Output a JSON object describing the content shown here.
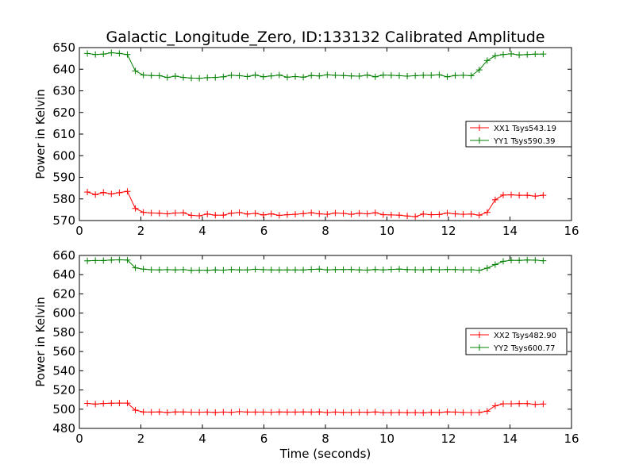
{
  "title": "Galactic_Longitude_Zero, ID:133132 Calibrated Amplitude",
  "colors": {
    "red": "#ff0000",
    "green": "#008000"
  },
  "chart_data": [
    {
      "type": "line",
      "ylabel": "Power in Kelvin",
      "xlabel": "",
      "xlim": [
        0,
        16
      ],
      "ylim": [
        570,
        650
      ],
      "xticks": [
        0,
        2,
        4,
        6,
        8,
        10,
        12,
        14,
        16
      ],
      "yticks": [
        570,
        580,
        590,
        600,
        610,
        620,
        630,
        640,
        650
      ],
      "legend_position": "center-right",
      "x": [
        0.26,
        0.52,
        0.78,
        1.04,
        1.3,
        1.56,
        1.82,
        2.08,
        2.34,
        2.6,
        2.86,
        3.12,
        3.38,
        3.64,
        3.9,
        4.16,
        4.42,
        4.68,
        4.94,
        5.2,
        5.46,
        5.72,
        5.98,
        6.24,
        6.5,
        6.76,
        7.02,
        7.28,
        7.54,
        7.8,
        8.06,
        8.32,
        8.58,
        8.84,
        9.1,
        9.36,
        9.62,
        9.88,
        10.14,
        10.4,
        10.66,
        10.92,
        11.18,
        11.44,
        11.7,
        11.96,
        12.22,
        12.48,
        12.74,
        13.0,
        13.26,
        13.52,
        13.78,
        14.04,
        14.3,
        14.56,
        14.82,
        15.08
      ],
      "series": [
        {
          "name": "XX1 Tsys543.19",
          "color": "red",
          "values": [
            583.2,
            582.0,
            583.0,
            582.3,
            582.9,
            583.5,
            575.6,
            573.8,
            573.5,
            573.4,
            573.1,
            573.5,
            573.6,
            572.4,
            572.2,
            573.0,
            572.5,
            572.5,
            573.4,
            573.7,
            573.0,
            573.3,
            572.6,
            573.1,
            572.4,
            572.7,
            572.9,
            573.2,
            573.6,
            573.1,
            572.9,
            573.5,
            573.3,
            572.9,
            573.4,
            573.1,
            573.6,
            572.7,
            572.6,
            572.5,
            572.1,
            571.8,
            573.0,
            572.7,
            572.8,
            573.5,
            573.1,
            572.9,
            573.0,
            572.5,
            573.8,
            579.6,
            581.8,
            581.9,
            581.7,
            581.7,
            581.3,
            581.7
          ]
        },
        {
          "name": "YY1 Tsys590.39",
          "color": "green",
          "values": [
            647.3,
            646.8,
            647.0,
            647.6,
            647.3,
            646.8,
            639.2,
            637.3,
            637.1,
            637.0,
            636.2,
            636.8,
            636.2,
            635.9,
            635.8,
            636.1,
            636.2,
            636.5,
            637.2,
            637.0,
            636.6,
            637.3,
            636.5,
            636.9,
            637.3,
            636.3,
            636.6,
            636.3,
            637.1,
            636.9,
            637.4,
            637.2,
            637.1,
            636.9,
            636.8,
            637.3,
            636.5,
            637.3,
            637.2,
            637.0,
            636.8,
            637.0,
            637.2,
            637.2,
            637.4,
            636.5,
            637.1,
            637.2,
            637.0,
            639.7,
            644.0,
            646.2,
            646.8,
            647.1,
            646.6,
            646.8,
            647.0,
            647.0
          ]
        }
      ]
    },
    {
      "type": "line",
      "ylabel": "Power in Kelvin",
      "xlabel": "Time (seconds)",
      "xlim": [
        0,
        16
      ],
      "ylim": [
        480,
        660
      ],
      "xticks": [
        0,
        2,
        4,
        6,
        8,
        10,
        12,
        14,
        16
      ],
      "yticks": [
        480,
        500,
        520,
        540,
        560,
        580,
        600,
        620,
        640,
        660
      ],
      "legend_position": "center-right",
      "x": [
        0.26,
        0.52,
        0.78,
        1.04,
        1.3,
        1.56,
        1.82,
        2.08,
        2.34,
        2.6,
        2.86,
        3.12,
        3.38,
        3.64,
        3.9,
        4.16,
        4.42,
        4.68,
        4.94,
        5.2,
        5.46,
        5.72,
        5.98,
        6.24,
        6.5,
        6.76,
        7.02,
        7.28,
        7.54,
        7.8,
        8.06,
        8.32,
        8.58,
        8.84,
        9.1,
        9.36,
        9.62,
        9.88,
        10.14,
        10.4,
        10.66,
        10.92,
        11.18,
        11.44,
        11.7,
        11.96,
        12.22,
        12.48,
        12.74,
        13.0,
        13.26,
        13.52,
        13.78,
        14.04,
        14.3,
        14.56,
        14.82,
        15.08
      ],
      "series": [
        {
          "name": "XX2 Tsys482.90",
          "color": "red",
          "values": [
            506.0,
            505.3,
            505.9,
            506.2,
            506.3,
            506.3,
            499.0,
            497.1,
            497.0,
            497.2,
            496.6,
            497.1,
            497.1,
            496.9,
            496.9,
            497.0,
            496.6,
            497.0,
            496.8,
            497.4,
            497.0,
            497.0,
            497.0,
            496.9,
            497.1,
            497.0,
            497.0,
            497.1,
            497.0,
            497.2,
            496.5,
            497.0,
            496.6,
            496.6,
            496.9,
            496.8,
            497.1,
            496.4,
            496.4,
            496.6,
            496.4,
            496.5,
            496.2,
            496.7,
            496.6,
            497.2,
            497.0,
            496.6,
            496.5,
            496.6,
            497.9,
            503.5,
            505.6,
            505.6,
            505.8,
            505.8,
            505.0,
            505.4
          ]
        },
        {
          "name": "YY2 Tsys600.77",
          "color": "green",
          "values": [
            654.4,
            654.7,
            654.7,
            655.2,
            655.5,
            655.2,
            647.1,
            645.8,
            645.1,
            645.0,
            645.2,
            645.0,
            645.2,
            644.5,
            644.7,
            644.6,
            645.0,
            644.7,
            645.3,
            645.0,
            645.0,
            645.6,
            645.2,
            645.0,
            644.9,
            645.0,
            645.0,
            644.9,
            645.5,
            645.8,
            645.0,
            645.3,
            645.3,
            645.4,
            645.0,
            644.8,
            645.4,
            645.0,
            645.5,
            645.8,
            645.3,
            645.1,
            645.0,
            645.4,
            645.1,
            645.4,
            645.3,
            645.0,
            645.1,
            644.6,
            646.8,
            650.5,
            653.9,
            655.0,
            654.9,
            655.3,
            655.1,
            654.5
          ]
        }
      ]
    }
  ]
}
